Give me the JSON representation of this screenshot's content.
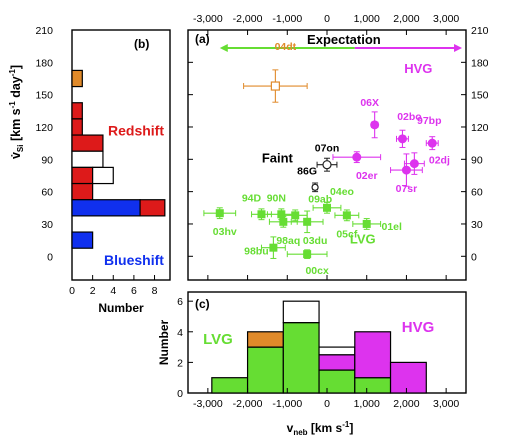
{
  "colors": {
    "lvg": "#66dd33",
    "hvg": "#dd33ee",
    "faint": "#222222",
    "orange": "#e08a2a",
    "red": "#dd1a1a",
    "blue": "#1030ee",
    "white": "#ffffff"
  },
  "chart_data": [
    {
      "panel": "(a)",
      "type": "scatter",
      "xlabel": "v_neb [km s^-1]",
      "ylabel": "v̇_Si [km s^-1 day^-1]",
      "x_ticks": [
        "-3,000",
        "-2,000",
        "-1,000",
        "0",
        "1,000",
        "2,000",
        "3,000"
      ],
      "x_tick_values": [
        -3000,
        -2000,
        -1000,
        0,
        1000,
        2000,
        3000
      ],
      "y_ticks": [
        "0",
        "30",
        "60",
        "90",
        "120",
        "150",
        "180",
        "210"
      ],
      "y_tick_values": [
        0,
        30,
        60,
        90,
        120,
        150,
        180,
        210
      ],
      "xlim": [
        -3500,
        3500
      ],
      "ylim": [
        -22,
        210
      ],
      "expectation_label": "Expectation",
      "expectation_range": [
        -2700,
        3400
      ],
      "expectation_split": 700,
      "labels": {
        "hvg": "HVG",
        "lvg": "LVG",
        "faint": "Faint"
      },
      "points": [
        {
          "name": "04dt",
          "x": -1300,
          "y": 158,
          "xerr": 800,
          "yerr": 15,
          "group": "orange",
          "label_dx": 10,
          "label_dy": 40
        },
        {
          "name": "07on",
          "x": 0,
          "y": 85,
          "xerr": 250,
          "yerr": 6,
          "group": "faint",
          "label_dx": 0,
          "label_dy": 17
        },
        {
          "name": "86G",
          "x": -300,
          "y": 64,
          "xerr": 60,
          "yerr": 4,
          "group": "faint",
          "label_dx": -8,
          "label_dy": 17
        },
        {
          "name": "06X",
          "x": 1200,
          "y": 122,
          "xerr": 80,
          "yerr": 12,
          "group": "hvg",
          "label_dx": -5,
          "label_dy": 23
        },
        {
          "name": "02bo",
          "x": 1900,
          "y": 109,
          "xerr": 150,
          "yerr": 8,
          "group": "hvg",
          "label_dx": 7,
          "label_dy": 23
        },
        {
          "name": "97bp",
          "x": 2650,
          "y": 105,
          "xerr": 150,
          "yerr": 6,
          "group": "hvg",
          "label_dx": -3,
          "label_dy": 23
        },
        {
          "name": "02er",
          "x": 750,
          "y": 92,
          "xerr": 600,
          "yerr": 5,
          "group": "hvg",
          "label_dx": 10,
          "label_dy": -18
        },
        {
          "name": "02dj",
          "x": 2200,
          "y": 86,
          "xerr": 250,
          "yerr": 10,
          "group": "hvg",
          "label_dx": 25,
          "label_dy": 4
        },
        {
          "name": "07sr",
          "x": 2000,
          "y": 80,
          "xerr": 400,
          "yerr": 15,
          "group": "hvg",
          "label_dx": 0,
          "label_dy": -18
        },
        {
          "name": "03hv",
          "x": -2700,
          "y": 40,
          "xerr": 400,
          "yerr": 5,
          "group": "lvg",
          "label_dx": 5,
          "label_dy": -18
        },
        {
          "name": "94D",
          "x": -1650,
          "y": 39,
          "xerr": 250,
          "yerr": 5,
          "group": "lvg",
          "label_dx": -10,
          "label_dy": 17
        },
        {
          "name": "90N",
          "x": -1150,
          "y": 39,
          "xerr": 350,
          "yerr": 5,
          "group": "lvg",
          "label_dx": -5,
          "label_dy": 17
        },
        {
          "name": "09ab",
          "x": -800,
          "y": 38,
          "xerr": 300,
          "yerr": 5,
          "group": "lvg",
          "label_dx": 25,
          "label_dy": 17
        },
        {
          "name": "04eo",
          "x": 0,
          "y": 45,
          "xerr": 350,
          "yerr": 5,
          "group": "lvg",
          "label_dx": 15,
          "label_dy": 17
        },
        {
          "name": "98aq",
          "x": -1100,
          "y": 32,
          "xerr": 350,
          "yerr": 5,
          "group": "lvg",
          "label_dx": 5,
          "label_dy": -18
        },
        {
          "name": "03du",
          "x": -500,
          "y": 32,
          "xerr": 400,
          "yerr": 10,
          "group": "lvg",
          "label_dx": 8,
          "label_dy": -18
        },
        {
          "name": "05cf",
          "x": 500,
          "y": 38,
          "xerr": 300,
          "yerr": 5,
          "group": "lvg",
          "label_dx": 0,
          "label_dy": -18
        },
        {
          "name": "01el",
          "x": 1000,
          "y": 30,
          "xerr": 350,
          "yerr": 5,
          "group": "lvg",
          "label_dx": 25,
          "label_dy": -2
        },
        {
          "name": "98bu",
          "x": -1350,
          "y": 8,
          "xerr": 300,
          "yerr": 10,
          "group": "lvg",
          "label_dx": -17,
          "label_dy": -3
        },
        {
          "name": "00cx",
          "x": -500,
          "y": 2,
          "xerr": 500,
          "yerr": 4,
          "group": "lvg",
          "label_dx": 10,
          "label_dy": -16
        }
      ]
    },
    {
      "panel": "(b)",
      "type": "bar",
      "orientation": "horizontal",
      "xlabel": "Number",
      "x_ticks": [
        "0",
        "2",
        "4",
        "6",
        "8"
      ],
      "x_tick_values": [
        0,
        2,
        4,
        6,
        8
      ],
      "xlim": [
        0,
        9.5
      ],
      "bin_width": 15,
      "labels": {
        "redshift": "Redshift",
        "blueshift": "Blueshift"
      },
      "bins": [
        {
          "center": 165,
          "blue": 0,
          "red": 0,
          "white": 0,
          "orange": 1
        },
        {
          "center": 150,
          "blue": 0,
          "red": 0,
          "white": 0,
          "orange": 0
        },
        {
          "center": 135,
          "blue": 0,
          "red": 1,
          "white": 0,
          "orange": 0
        },
        {
          "center": 120,
          "blue": 0,
          "red": 1,
          "white": 0,
          "orange": 0
        },
        {
          "center": 105,
          "blue": 0,
          "red": 3,
          "white": 0,
          "orange": 0
        },
        {
          "center": 90,
          "blue": 0,
          "red": 0,
          "white": 3,
          "orange": 0
        },
        {
          "center": 75,
          "blue": 0,
          "red": 2,
          "white": 2,
          "orange": 0
        },
        {
          "center": 60,
          "blue": 0,
          "red": 2,
          "white": 0,
          "orange": 0
        },
        {
          "center": 45,
          "blue": 6.6,
          "red": 2.4,
          "white": 0,
          "orange": 0
        },
        {
          "center": 30,
          "blue": 0,
          "red": 0,
          "white": 0,
          "orange": 0
        },
        {
          "center": 15,
          "blue": 2,
          "red": 0,
          "white": 0,
          "orange": 0
        }
      ]
    },
    {
      "panel": "(c)",
      "type": "bar",
      "orientation": "vertical",
      "stacked": true,
      "xlabel": "v_neb [km s^-1]",
      "ylabel": "Number",
      "x_ticks": [
        "-3,000",
        "-2,000",
        "-1,000",
        "0",
        "1,000",
        "2,000",
        "3,000"
      ],
      "x_tick_values": [
        -3000,
        -2000,
        -1000,
        0,
        1000,
        2000,
        3000
      ],
      "y_ticks": [
        "0",
        "2",
        "4",
        "6"
      ],
      "y_tick_values": [
        0,
        2,
        4,
        6
      ],
      "xlim": [
        -3500,
        3500
      ],
      "ylim": [
        0,
        6.6
      ],
      "bin_width": 900,
      "labels": {
        "lvg": "LVG",
        "hvg": "HVG"
      },
      "bins": [
        {
          "center": -2450,
          "green": 1,
          "orange": 0,
          "white": 0,
          "magenta": 0
        },
        {
          "center": -1550,
          "green": 3,
          "orange": 1,
          "white": 0,
          "magenta": 0
        },
        {
          "center": -650,
          "green": 4.6,
          "orange": 0,
          "white": 1.4,
          "magenta": 0
        },
        {
          "center": 250,
          "green": 1.5,
          "orange": 0,
          "white": 0.5,
          "magenta": 1
        },
        {
          "center": 1150,
          "green": 1,
          "orange": 0,
          "white": 0,
          "magenta": 3
        },
        {
          "center": 2050,
          "green": 0,
          "orange": 0,
          "white": 0,
          "magenta": 2
        }
      ]
    }
  ],
  "text": {
    "panel_a": "(a)",
    "panel_b": "(b)",
    "panel_c": "(c)",
    "y_axis_a": "v̇",
    "y_axis_a_sub": "Si",
    "y_axis_a_unit": "[km s",
    "y_axis_a_unit_sup1": "-1",
    "y_axis_a_unit_mid": " day",
    "y_axis_a_unit_sup2": "-1",
    "y_axis_a_unit_end": "]",
    "x_axis_c": "v",
    "x_axis_c_sub": "neb",
    "x_axis_c_unit": " [km s",
    "x_axis_c_unit_sup": "-1",
    "x_axis_c_unit_end": "]"
  }
}
